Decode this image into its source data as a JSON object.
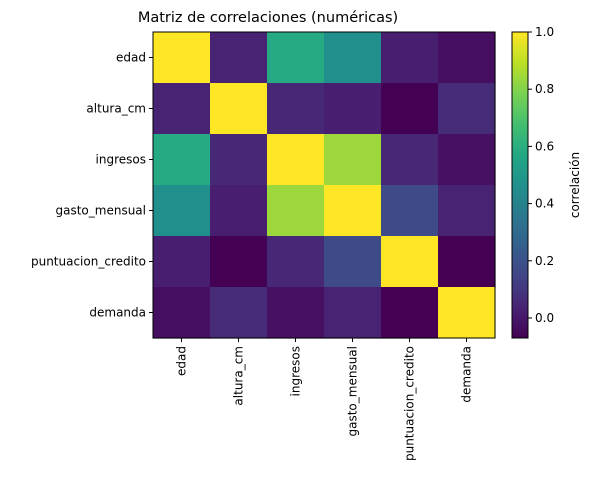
{
  "chart_data": {
    "type": "heatmap",
    "title": "Matriz de correlaciones (numéricas)",
    "rows": [
      "edad",
      "altura_cm",
      "ingresos",
      "gasto_mensual",
      "puntuacion_credito",
      "demanda"
    ],
    "columns": [
      "edad",
      "altura_cm",
      "ingresos",
      "gasto_mensual",
      "puntuacion_credito",
      "demanda"
    ],
    "values": [
      [
        1.0,
        0.03,
        0.58,
        0.46,
        0.02,
        -0.03
      ],
      [
        0.03,
        1.0,
        0.05,
        0.02,
        -0.07,
        0.06
      ],
      [
        0.58,
        0.05,
        1.0,
        0.84,
        0.05,
        -0.02
      ],
      [
        0.46,
        0.02,
        0.84,
        1.0,
        0.17,
        0.03
      ],
      [
        0.02,
        -0.07,
        0.05,
        0.17,
        1.0,
        -0.07
      ],
      [
        -0.03,
        0.06,
        -0.02,
        0.03,
        -0.07,
        1.0
      ]
    ],
    "colorbar": {
      "label": "correlación",
      "min": -0.07,
      "max": 1.0,
      "ticks": [
        "0.0",
        "0.2",
        "0.4",
        "0.6",
        "0.8",
        "1.0"
      ],
      "colormap": "viridis"
    }
  }
}
